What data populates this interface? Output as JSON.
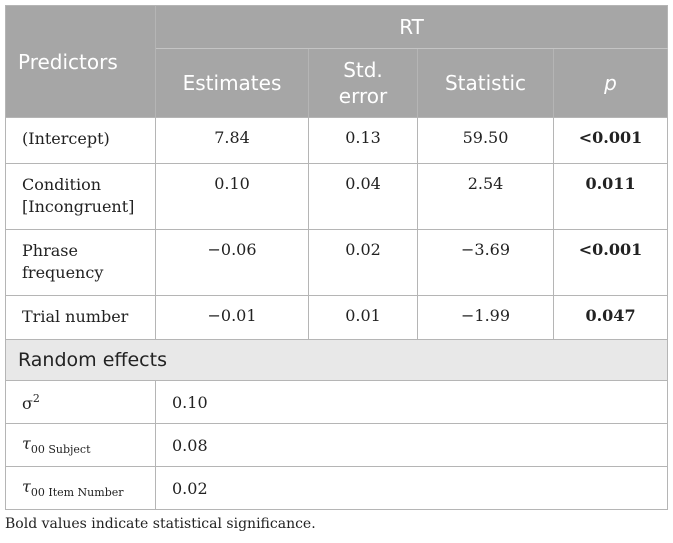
{
  "header": {
    "predictors": "Predictors",
    "group": "RT",
    "columns": [
      "Estimates",
      "Std. error",
      "Statistic",
      "p"
    ]
  },
  "rows": [
    {
      "label": "(Intercept)",
      "estimate": "7.84",
      "se": "0.13",
      "statistic": "59.50",
      "p": "<0.001"
    },
    {
      "label": "Condition [Incongruent]",
      "estimate": "0.10",
      "se": "0.04",
      "statistic": "2.54",
      "p": "0.011"
    },
    {
      "label": "Phrase frequency",
      "estimate": "−0.06",
      "se": "0.02",
      "statistic": "−3.69",
      "p": "<0.001"
    },
    {
      "label": "Trial number",
      "estimate": "−0.01",
      "se": "0.01",
      "statistic": "−1.99",
      "p": "0.047"
    }
  ],
  "random_effects": {
    "title": "Random effects",
    "sigma": {
      "symbol": "σ",
      "sup": "2",
      "value": "0.10"
    },
    "tau_subject": {
      "symbol": "τ",
      "sub": "00 Subject",
      "value": "0.08"
    },
    "tau_item": {
      "symbol": "τ",
      "sub": "00 Item Number",
      "value": "0.02"
    }
  },
  "footnote": "Bold values indicate statistical significance."
}
